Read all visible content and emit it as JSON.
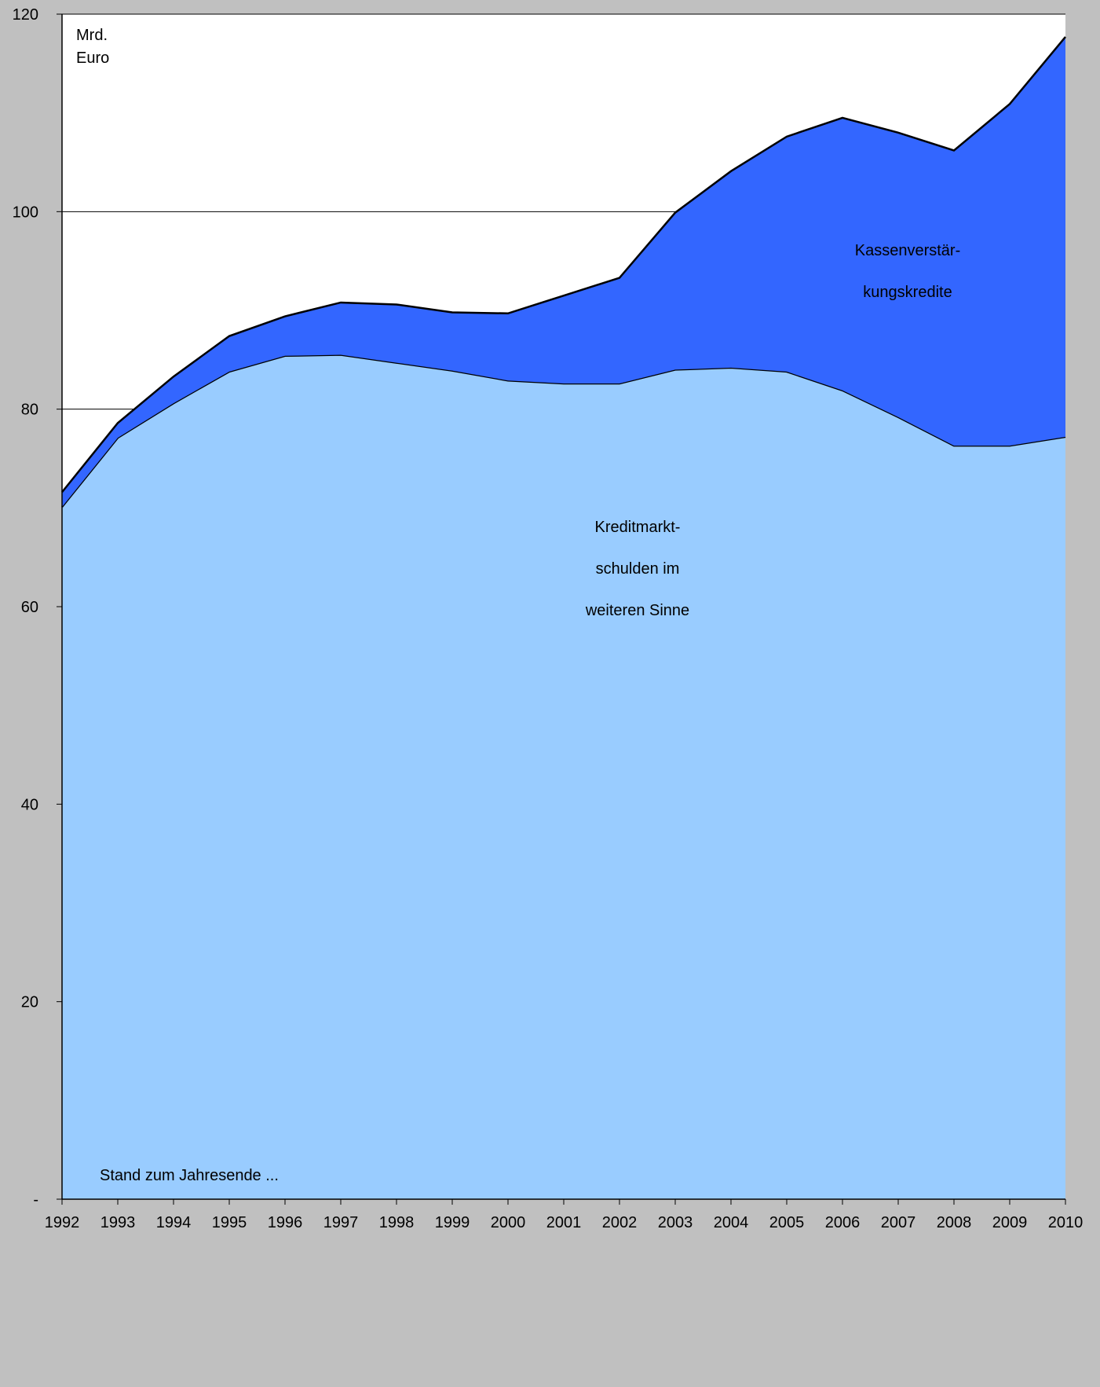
{
  "chart_data": {
    "type": "stacked_area",
    "y_label": "Mrd.\nEuro",
    "note": "Stand zum Jahresende ...",
    "categories": [
      "1992",
      "1993",
      "1994",
      "1995",
      "1996",
      "1997",
      "1998",
      "1999",
      "2000",
      "2001",
      "2002",
      "2003",
      "2004",
      "2005",
      "2006",
      "2007",
      "2008",
      "2009",
      "2010"
    ],
    "series": [
      {
        "name": "Kreditmarkt-\nschulden im\nweiteren Sinne",
        "color": "#99ccff",
        "values": [
          70.1,
          77.1,
          80.6,
          83.8,
          85.4,
          85.5,
          84.7,
          83.9,
          82.9,
          82.6,
          82.6,
          84.0,
          84.2,
          83.8,
          81.9,
          79.2,
          76.3,
          76.3,
          77.2
        ]
      },
      {
        "name": "Kassenverstär-\nkungskredite",
        "color": "#3366ff",
        "values": [
          1.5,
          1.5,
          2.7,
          3.6,
          4.0,
          5.3,
          5.9,
          5.9,
          6.8,
          8.9,
          10.7,
          15.9,
          19.9,
          23.8,
          27.6,
          28.8,
          29.9,
          34.6,
          40.5
        ]
      }
    ],
    "ylim": [
      0,
      120
    ],
    "yticks": [
      {
        "value": 0,
        "label": "-"
      },
      20,
      40,
      60,
      80,
      100,
      120
    ],
    "grid": true
  }
}
